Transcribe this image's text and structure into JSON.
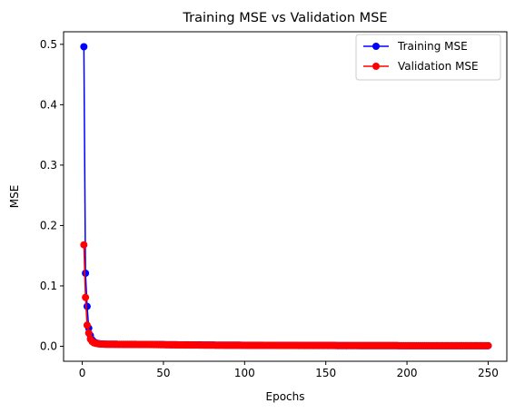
{
  "chart_data": {
    "type": "line",
    "title": "Training MSE vs Validation MSE",
    "xlabel": "Epochs",
    "ylabel": "MSE",
    "xlim": [
      -11.5,
      261.5
    ],
    "ylim": [
      -0.0248,
      0.5208
    ],
    "xticks": [
      0,
      50,
      100,
      150,
      200,
      250
    ],
    "yticks": [
      0.0,
      0.1,
      0.2,
      0.3,
      0.4,
      0.5
    ],
    "xtick_labels": [
      "0",
      "50",
      "100",
      "150",
      "200",
      "250"
    ],
    "ytick_labels": [
      "0.0",
      "0.1",
      "0.2",
      "0.3",
      "0.4",
      "0.5"
    ],
    "grid": false,
    "legend_position": "top-right",
    "epochs": {
      "start": 1,
      "end": 250
    },
    "series": [
      {
        "name": "Training MSE",
        "color": "#0000ff",
        "marker": "circle",
        "head_values": [
          0.496,
          0.121,
          0.066,
          0.03,
          0.018,
          0.011,
          0.008,
          0.006,
          0.005,
          0.0045,
          0.004,
          0.0038,
          0.0036,
          0.0035,
          0.0034
        ],
        "tail_points": [
          [
            20,
            0.0033
          ],
          [
            40,
            0.003
          ],
          [
            60,
            0.0025
          ],
          [
            80,
            0.002
          ],
          [
            120,
            0.0015
          ],
          [
            160,
            0.0012
          ],
          [
            200,
            0.001
          ],
          [
            250,
            0.001
          ]
        ]
      },
      {
        "name": "Validation MSE",
        "color": "#ff0000",
        "marker": "circle",
        "head_values": [
          0.168,
          0.081,
          0.035,
          0.022,
          0.012,
          0.008,
          0.006,
          0.005,
          0.0045,
          0.004,
          0.0038,
          0.0036,
          0.0035,
          0.0034,
          0.0033
        ],
        "tail_points": [
          [
            20,
            0.0033
          ],
          [
            40,
            0.003
          ],
          [
            60,
            0.0022
          ],
          [
            80,
            0.0018
          ],
          [
            120,
            0.0014
          ],
          [
            160,
            0.0012
          ],
          [
            200,
            0.001
          ],
          [
            250,
            0.001
          ]
        ]
      }
    ]
  }
}
